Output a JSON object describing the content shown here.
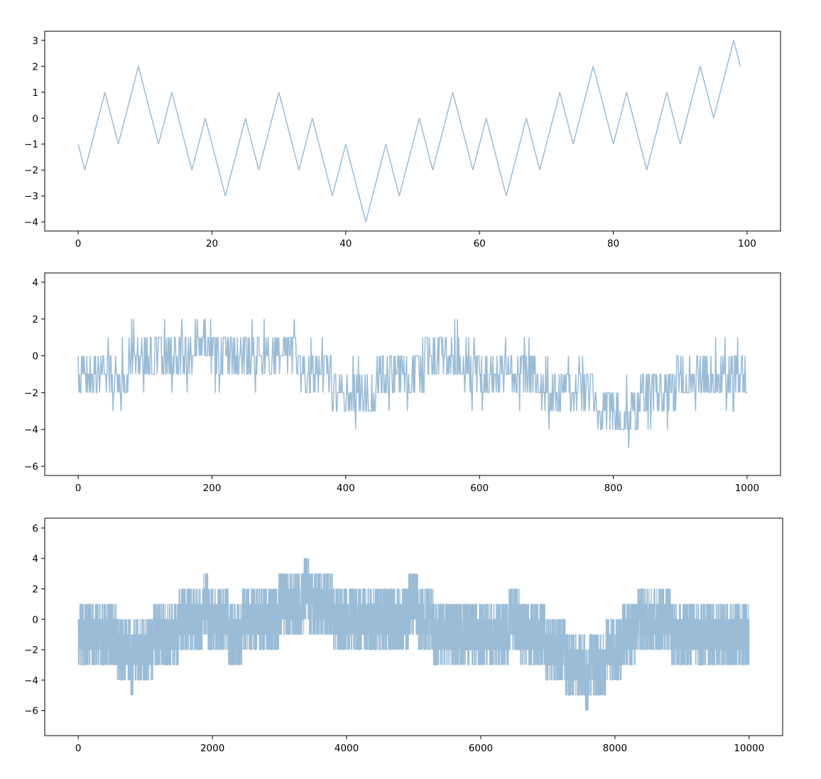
{
  "chart_data": [
    {
      "type": "line",
      "title": "",
      "xlabel": "",
      "ylabel": "",
      "xlim": [
        -5,
        105
      ],
      "ylim": [
        -4.35,
        3.35
      ],
      "xticks": [
        0,
        20,
        40,
        60,
        80,
        100
      ],
      "yticks": [
        -4,
        -3,
        -2,
        -1,
        0,
        1,
        2,
        3
      ],
      "grid": false,
      "series": [
        {
          "color": "#9bbcd6",
          "x": [
            0,
            1,
            4,
            6,
            9,
            12,
            14,
            17,
            19,
            22,
            25,
            27,
            30,
            33,
            35,
            38,
            40,
            43,
            46,
            48,
            51,
            53,
            56,
            59,
            61,
            64,
            67,
            69,
            72,
            74,
            77,
            80,
            82,
            85,
            88,
            90,
            93,
            95,
            98,
            99
          ],
          "y": [
            -1,
            -2,
            1,
            -1,
            2,
            -1,
            1,
            -2,
            0,
            -3,
            0,
            -2,
            1,
            -2,
            0,
            -3,
            -1,
            -4,
            -1,
            -3,
            0,
            -2,
            1,
            -2,
            0,
            -3,
            0,
            -2,
            1,
            -1,
            2,
            -1,
            1,
            -2,
            1,
            -1,
            2,
            0,
            3,
            2
          ]
        }
      ]
    },
    {
      "type": "line",
      "title": "",
      "xlabel": "",
      "ylabel": "",
      "xlim": [
        -50,
        1050
      ],
      "ylim": [
        -6.5,
        4.5
      ],
      "xticks": [
        0,
        200,
        400,
        600,
        800,
        1000
      ],
      "yticks": [
        -6,
        -4,
        -2,
        0,
        2,
        4
      ],
      "grid": false,
      "series": [
        {
          "color": "#9bbcd6",
          "x": [
            0,
            50,
            100,
            150,
            185,
            200,
            250,
            300,
            350,
            400,
            420,
            450,
            500,
            550,
            565,
            600,
            650,
            700,
            750,
            798,
            850,
            900,
            950,
            1000
          ],
          "y": [
            -1,
            -1,
            0,
            -0.3,
            1,
            0.5,
            -0.5,
            0,
            -0.8,
            -2,
            -2.5,
            -1.3,
            -0.8,
            0,
            0.5,
            -1.2,
            -0.7,
            -1.8,
            -1.5,
            -3.5,
            -2.2,
            -1.4,
            -0.8,
            -1
          ]
        }
      ]
    },
    {
      "type": "line",
      "title": "",
      "xlabel": "",
      "ylabel": "",
      "xlim": [
        -500,
        10500
      ],
      "ylim": [
        -7.65,
        6.65
      ],
      "xticks": [
        0,
        2000,
        4000,
        6000,
        8000,
        10000
      ],
      "yticks": [
        -6,
        -4,
        -2,
        0,
        2,
        4,
        6
      ],
      "grid": false,
      "series": [
        {
          "color": "#9bbcd6",
          "x": [
            0,
            500,
            800,
            1000,
            1500,
            1900,
            2300,
            2800,
            3400,
            3800,
            4200,
            4800,
            5000,
            5400,
            6000,
            6500,
            7000,
            7580,
            8000,
            8500,
            9000,
            9500,
            10000
          ],
          "y": [
            -1,
            -1.2,
            -2.6,
            -1.8,
            -0.5,
            0.6,
            -0.7,
            0,
            1.6,
            0.5,
            -0.5,
            0,
            0.8,
            -1,
            -1.5,
            -0.3,
            -1.6,
            -3.6,
            -2,
            0.3,
            -0.9,
            -1.2,
            -0.5
          ]
        }
      ]
    }
  ]
}
